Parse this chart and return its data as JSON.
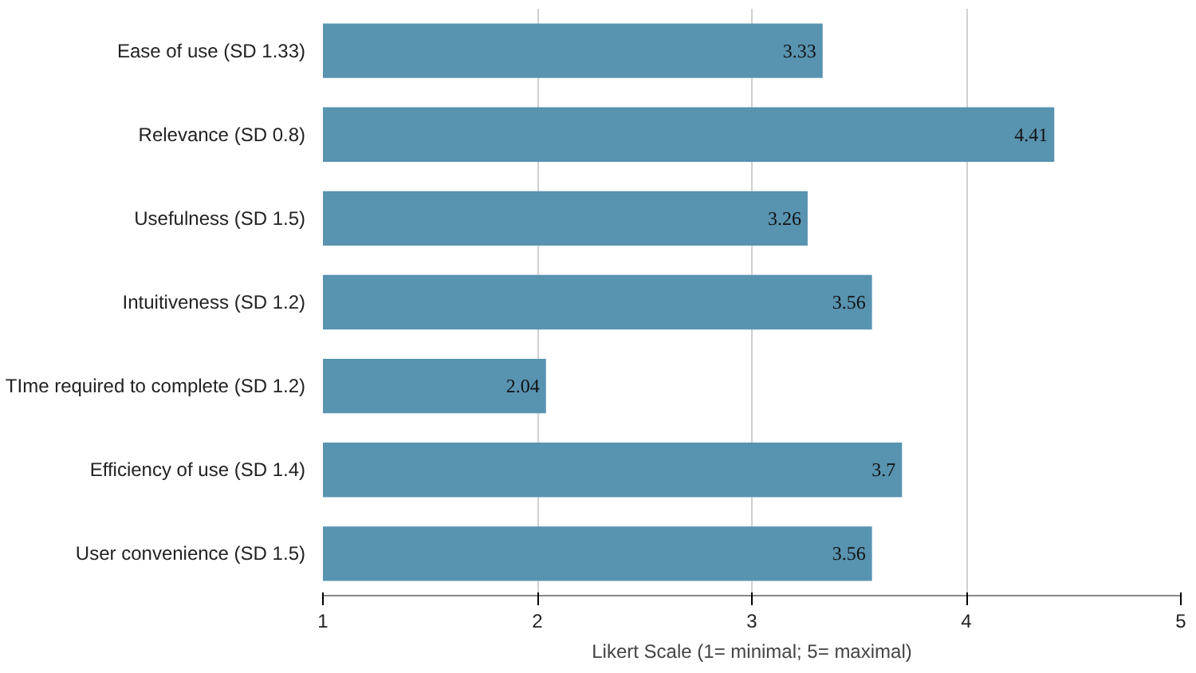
{
  "chart_data": {
    "type": "bar",
    "orientation": "horizontal",
    "xlabel": "Likert Scale (1= minimal; 5= maximal)",
    "categories": [
      "Ease of use (SD 1.33)",
      "Relevance (SD 0.8)",
      "Usefulness (SD 1.5)",
      "Intuitiveness (SD 1.2)",
      "TIme required to complete (SD 1.2)",
      "Efficiency of use (SD 1.4)",
      "User convenience (SD 1.5)"
    ],
    "values": [
      3.33,
      4.41,
      3.26,
      3.56,
      2.04,
      3.7,
      3.56
    ],
    "color": "#5893b0",
    "xlim": [
      1,
      5
    ],
    "xticks": [
      1,
      2,
      3,
      4,
      5
    ],
    "grid": "x",
    "data_labels": true
  }
}
